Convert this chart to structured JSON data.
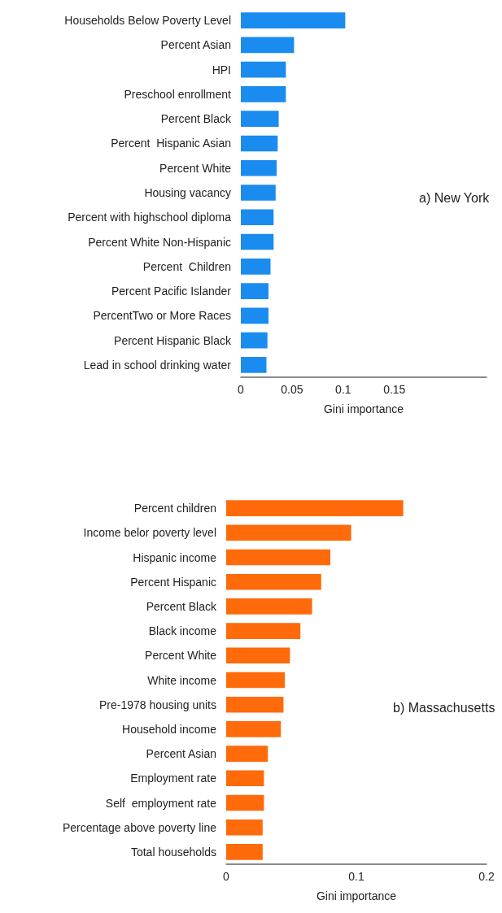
{
  "chart_data": [
    {
      "type": "bar",
      "orientation": "horizontal",
      "title": "a) New York",
      "xlabel": "Gini importance",
      "color": "#1a8cf0",
      "categories": [
        "Households Below Poverty Level",
        "Percent Asian",
        "HPI",
        "Preschool enrollment",
        "Percent Black",
        "Percent  Hispanic Asian",
        "Percent White",
        "Housing vacancy",
        "Percent with highschool diploma",
        "Percent White Non-Hispanic",
        "Percent  Children",
        "Percent Pacific Islander",
        "PercentTwo or More Races",
        "Percent Hispanic Black",
        "Lead in school drinking water"
      ],
      "values": [
        0.102,
        0.052,
        0.044,
        0.044,
        0.037,
        0.036,
        0.035,
        0.034,
        0.032,
        0.032,
        0.029,
        0.027,
        0.027,
        0.026,
        0.025
      ],
      "xlim": [
        0,
        0.24
      ],
      "xticks": [
        0,
        0.05,
        0.1,
        0.15
      ]
    },
    {
      "type": "bar",
      "orientation": "horizontal",
      "title": "b) Massachusetts",
      "xlabel": "Gini importance",
      "color": "#ff6a0a",
      "categories": [
        "Percent children",
        "Income belor poverty level",
        "Hispanic income",
        "Percent Hispanic",
        "Percent Black",
        "Black income",
        "Percent White",
        "White income",
        "Pre-1978 housing units",
        "Household income",
        "Percent Asian",
        "Employment rate",
        "Self  employment rate",
        "Percentage above poverty line",
        "Total households"
      ],
      "values": [
        0.136,
        0.096,
        0.08,
        0.073,
        0.066,
        0.057,
        0.049,
        0.045,
        0.044,
        0.042,
        0.032,
        0.029,
        0.029,
        0.028,
        0.028
      ],
      "xlim": [
        0,
        0.2
      ],
      "xticks": [
        0,
        0.1,
        0.2
      ]
    }
  ]
}
